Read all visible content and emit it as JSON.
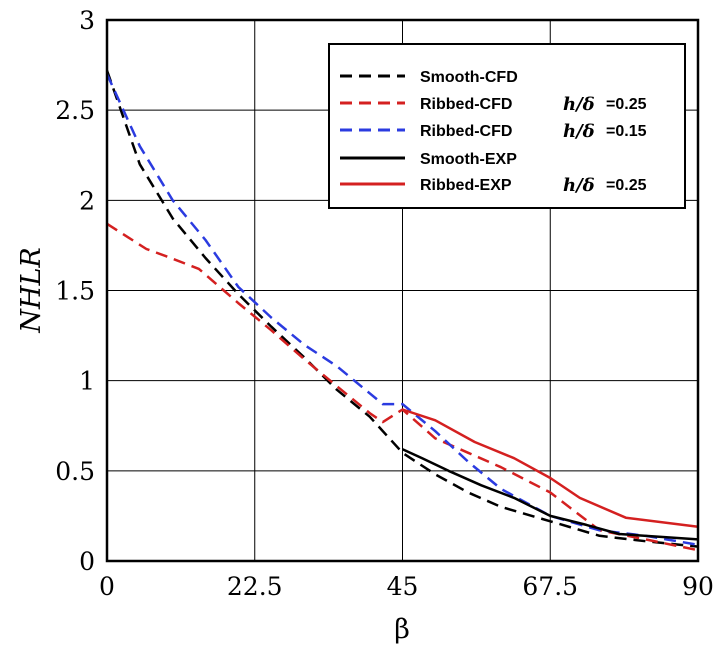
{
  "chart_data": {
    "type": "line",
    "xlabel": "β",
    "ylabel": "NHLR",
    "xlim": [
      0,
      90
    ],
    "ylim": [
      0,
      3
    ],
    "x_ticks": [
      "0",
      "22.5",
      "45",
      "67.5",
      "90"
    ],
    "y_ticks": [
      "0",
      "0.5",
      "1",
      "1.5",
      "2",
      "2.5",
      "3"
    ],
    "grid": true,
    "legend_position": "top-right",
    "series": [
      {
        "name": "Smooth-CFD",
        "param": "",
        "color": "#000000",
        "dashed": true,
        "points": [
          [
            0,
            2.72
          ],
          [
            5,
            2.2
          ],
          [
            10,
            1.9
          ],
          [
            15,
            1.68
          ],
          [
            20,
            1.48
          ],
          [
            25,
            1.3
          ],
          [
            30,
            1.13
          ],
          [
            35,
            0.95
          ],
          [
            40,
            0.8
          ],
          [
            45,
            0.6
          ],
          [
            50,
            0.48
          ],
          [
            55,
            0.38
          ],
          [
            60,
            0.3
          ],
          [
            67.5,
            0.22
          ],
          [
            75,
            0.14
          ],
          [
            82,
            0.11
          ],
          [
            90,
            0.08
          ]
        ]
      },
      {
        "name": "Ribbed-CFD",
        "param": "=0.25",
        "color": "#d42020",
        "dashed": true,
        "points": [
          [
            0,
            1.87
          ],
          [
            3,
            1.8
          ],
          [
            6,
            1.73
          ],
          [
            9,
            1.69
          ],
          [
            14,
            1.62
          ],
          [
            20,
            1.43
          ],
          [
            25,
            1.28
          ],
          [
            30,
            1.12
          ],
          [
            35,
            0.97
          ],
          [
            40,
            0.82
          ],
          [
            42,
            0.77
          ],
          [
            45,
            0.84
          ],
          [
            50,
            0.68
          ],
          [
            55,
            0.6
          ],
          [
            60,
            0.52
          ],
          [
            67.5,
            0.38
          ],
          [
            75,
            0.17
          ],
          [
            82,
            0.12
          ],
          [
            90,
            0.06
          ]
        ]
      },
      {
        "name": "Ribbed-CFD",
        "param": "=0.15",
        "color": "#2b3be0",
        "dashed": true,
        "points": [
          [
            0,
            2.7
          ],
          [
            5,
            2.3
          ],
          [
            10,
            2.0
          ],
          [
            15,
            1.78
          ],
          [
            20,
            1.52
          ],
          [
            25,
            1.35
          ],
          [
            30,
            1.2
          ],
          [
            35,
            1.08
          ],
          [
            40,
            0.93
          ],
          [
            42,
            0.87
          ],
          [
            45,
            0.87
          ],
          [
            50,
            0.72
          ],
          [
            55,
            0.55
          ],
          [
            60,
            0.4
          ],
          [
            67.5,
            0.25
          ],
          [
            75,
            0.17
          ],
          [
            82,
            0.14
          ],
          [
            90,
            0.09
          ]
        ]
      },
      {
        "name": "Smooth-EXP",
        "param": "",
        "color": "#000000",
        "dashed": false,
        "points": [
          [
            45,
            0.62
          ],
          [
            48,
            0.57
          ],
          [
            52,
            0.5
          ],
          [
            57,
            0.42
          ],
          [
            62,
            0.35
          ],
          [
            67.5,
            0.25
          ],
          [
            73,
            0.2
          ],
          [
            78,
            0.15
          ],
          [
            90,
            0.12
          ]
        ]
      },
      {
        "name": "Ribbed-EXP",
        "param": "=0.25",
        "color": "#d42020",
        "dashed": false,
        "points": [
          [
            45,
            0.84
          ],
          [
            50,
            0.78
          ],
          [
            56,
            0.66
          ],
          [
            62,
            0.57
          ],
          [
            67.5,
            0.46
          ],
          [
            72,
            0.35
          ],
          [
            79,
            0.24
          ],
          [
            90,
            0.19
          ]
        ]
      }
    ]
  },
  "legend_math_text": "h/δ"
}
